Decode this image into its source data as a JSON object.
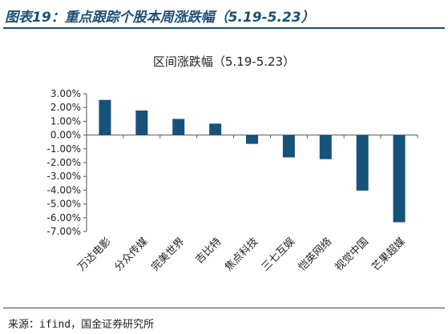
{
  "header": {
    "title": "图表19：重点跟踪个股本周涨跌幅（5.19-5.23）"
  },
  "chart_data": {
    "type": "bar",
    "title": "区间涨跌幅（5.19-5.23）",
    "categories": [
      "万达电影",
      "分众传媒",
      "完美世界",
      "吉比特",
      "焦点科技",
      "三七互娱",
      "恺英网络",
      "视觉中国",
      "芒果超媒"
    ],
    "values": [
      2.55,
      1.78,
      1.17,
      0.83,
      -0.64,
      -1.62,
      -1.75,
      -4.03,
      -6.33
    ],
    "ylim": [
      -7,
      3
    ],
    "yticks": [
      "3.00%",
      "2.00%",
      "1.00%",
      "0.00%",
      "-1.00%",
      "-2.00%",
      "-3.00%",
      "-4.00%",
      "-5.00%",
      "-6.00%",
      "-7.00%"
    ],
    "bar_color": "#17527a",
    "grid": false,
    "legend": "none"
  },
  "footer": {
    "source": "来源：ifind，国金证券研究所"
  }
}
